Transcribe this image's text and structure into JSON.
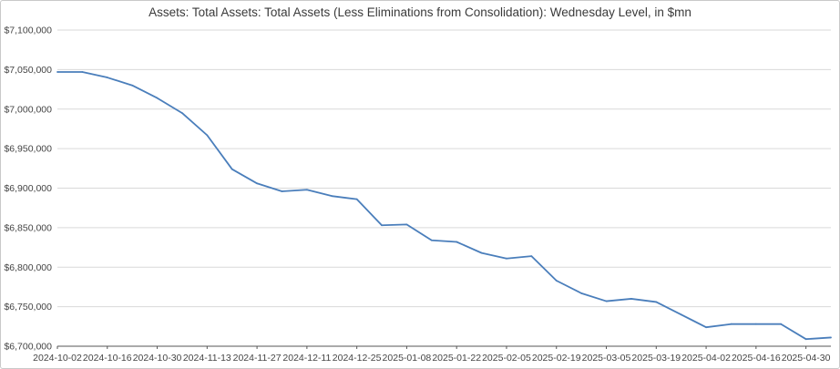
{
  "chart_data": {
    "type": "line",
    "title": "Assets: Total Assets: Total Assets (Less Eliminations from Consolidation): Wednesday Level, in $mn",
    "xlabel": "",
    "ylabel": "",
    "ylim": [
      6700000,
      7100000
    ],
    "y_ticks": [
      6700000,
      6750000,
      6800000,
      6850000,
      6900000,
      6950000,
      7000000,
      7050000,
      7100000
    ],
    "y_tick_labels": [
      "$6,700,000",
      "$6,750,000",
      "$6,800,000",
      "$6,850,000",
      "$6,900,000",
      "$6,950,000",
      "$7,000,000",
      "$7,050,000",
      "$7,100,000"
    ],
    "x_tick_labels": [
      "2024-10-02",
      "2024-10-16",
      "2024-10-30",
      "2024-11-13",
      "2024-11-27",
      "2024-12-11",
      "2024-12-25",
      "2025-01-08",
      "2025-01-22",
      "2025-02-05",
      "2025-02-19",
      "2025-03-05",
      "2025-03-19",
      "2025-04-02",
      "2025-04-16",
      "2025-04-30"
    ],
    "grid": "horizontal",
    "legend": "none",
    "line_color": "#4a7ebb",
    "x": [
      "2024-10-02",
      "2024-10-09",
      "2024-10-16",
      "2024-10-23",
      "2024-10-30",
      "2024-11-06",
      "2024-11-13",
      "2024-11-20",
      "2024-11-27",
      "2024-12-04",
      "2024-12-11",
      "2024-12-18",
      "2024-12-25",
      "2025-01-01",
      "2025-01-08",
      "2025-01-15",
      "2025-01-22",
      "2025-01-29",
      "2025-02-05",
      "2025-02-12",
      "2025-02-19",
      "2025-02-26",
      "2025-03-05",
      "2025-03-12",
      "2025-03-19",
      "2025-03-26",
      "2025-04-02",
      "2025-04-09",
      "2025-04-16",
      "2025-04-23",
      "2025-04-30",
      "2025-05-07"
    ],
    "values": [
      7047000,
      7047000,
      7040000,
      7030000,
      7014000,
      6995000,
      6967000,
      6924000,
      6906000,
      6896000,
      6898000,
      6890000,
      6886000,
      6853000,
      6854000,
      6834000,
      6832000,
      6818000,
      6811000,
      6814000,
      6783000,
      6767000,
      6757000,
      6760000,
      6756000,
      6740000,
      6724000,
      6728000,
      6728000,
      6728000,
      6709000,
      6711000
    ]
  }
}
